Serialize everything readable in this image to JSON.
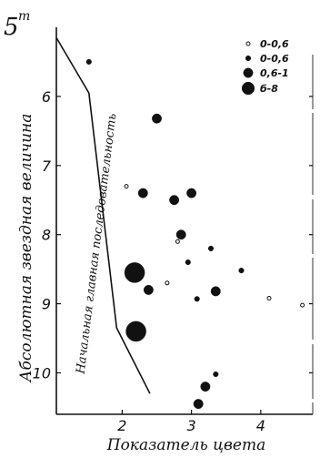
{
  "chart_data": {
    "type": "scatter",
    "title": "",
    "xlabel": "Показатель цвета",
    "ylabel": "Абсолютная звездная величина",
    "y_top_label": "5",
    "y_top_unit": "m",
    "xlim": [
      1.05,
      4.75
    ],
    "ylim": [
      5.0,
      10.6
    ],
    "y_inverted": true,
    "grid": false,
    "x_ticks": [
      {
        "value": 2,
        "label": "2"
      },
      {
        "value": 3,
        "label": "3"
      },
      {
        "value": 4,
        "label": "4"
      }
    ],
    "y_ticks": [
      {
        "value": 6,
        "label": "6"
      },
      {
        "value": 7,
        "label": "7"
      },
      {
        "value": 8,
        "label": "8"
      },
      {
        "value": 9,
        "label": "9"
      },
      {
        "value": 10,
        "label": "10"
      }
    ],
    "legend": {
      "position": "top-right",
      "entries": [
        {
          "label": "0-0,6",
          "size_class": "xs"
        },
        {
          "label": "0-0,6",
          "size_class": "s"
        },
        {
          "label": "0,6-1",
          "size_class": "m"
        },
        {
          "label": "б-8",
          "size_class": "l"
        }
      ]
    },
    "curve_label": "Начальная главная последовательность",
    "curve": [
      {
        "x": 1.05,
        "y": 5.15
      },
      {
        "x": 1.52,
        "y": 5.95
      },
      {
        "x": 1.92,
        "y": 9.35
      },
      {
        "x": 2.4,
        "y": 10.3
      }
    ],
    "points": [
      {
        "x": 1.52,
        "y": 5.5,
        "size_class": "s"
      },
      {
        "x": 2.5,
        "y": 6.32,
        "size_class": "m"
      },
      {
        "x": 2.06,
        "y": 7.3,
        "size_class": "xs"
      },
      {
        "x": 2.3,
        "y": 7.4,
        "size_class": "m"
      },
      {
        "x": 2.75,
        "y": 7.5,
        "size_class": "m"
      },
      {
        "x": 3.0,
        "y": 7.4,
        "size_class": "m"
      },
      {
        "x": 2.85,
        "y": 8.0,
        "size_class": "m"
      },
      {
        "x": 2.8,
        "y": 8.1,
        "size_class": "xs"
      },
      {
        "x": 3.28,
        "y": 8.2,
        "size_class": "s"
      },
      {
        "x": 2.95,
        "y": 8.4,
        "size_class": "s"
      },
      {
        "x": 2.18,
        "y": 8.55,
        "size_class": "l"
      },
      {
        "x": 2.65,
        "y": 8.7,
        "size_class": "xs"
      },
      {
        "x": 2.38,
        "y": 8.8,
        "size_class": "m"
      },
      {
        "x": 3.35,
        "y": 8.82,
        "size_class": "m"
      },
      {
        "x": 3.08,
        "y": 8.93,
        "size_class": "s"
      },
      {
        "x": 3.72,
        "y": 8.52,
        "size_class": "s"
      },
      {
        "x": 4.12,
        "y": 8.92,
        "size_class": "xs"
      },
      {
        "x": 4.6,
        "y": 9.02,
        "size_class": "xs"
      },
      {
        "x": 2.2,
        "y": 9.4,
        "size_class": "l"
      },
      {
        "x": 3.35,
        "y": 10.02,
        "size_class": "s"
      },
      {
        "x": 3.2,
        "y": 10.2,
        "size_class": "m"
      },
      {
        "x": 3.1,
        "y": 10.45,
        "size_class": "m"
      }
    ]
  }
}
